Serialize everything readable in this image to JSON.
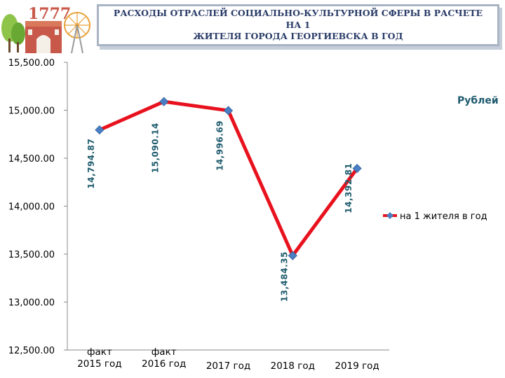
{
  "header": {
    "logo_text": "1777",
    "title_line1": "РАСХОДЫ ОТРАСЛЕЙ СОЦИАЛЬНО-КУЛЬТУРНОЙ СФЕРЫ В РАСЧЕТЕ НА 1",
    "title_line2": "ЖИТЕЛЯ ГОРОДА ГЕОРГИЕВСКА В ГОД"
  },
  "colors": {
    "series_line": "#e8121e",
    "marker": "#4a7ec2",
    "label": "#1f5c6e",
    "title": "#2a3c68"
  },
  "chart_data": {
    "type": "line",
    "title": "РАСХОДЫ ОТРАСЛЕЙ СОЦИАЛЬНО-КУЛЬТУРНОЙ СФЕРЫ В РАСЧЕТЕ НА 1 ЖИТЕЛЯ ГОРОДА ГЕОРГИЕВСКА В ГОД",
    "unit_label": "Рублей",
    "categories": [
      [
        "факт",
        "2015 год"
      ],
      [
        "факт",
        "2016 год"
      ],
      [
        "2017 год"
      ],
      [
        "2018 год"
      ],
      [
        "2019 год"
      ]
    ],
    "series": [
      {
        "name": "на 1 жителя в год",
        "values": [
          14794.87,
          15090.14,
          14996.69,
          13484.35,
          14392.81
        ],
        "labels": [
          "14,794.87",
          "15,090.14",
          "14,996.69",
          "13,484.35",
          "14,392.81"
        ]
      }
    ],
    "ylim": [
      12500,
      15500
    ],
    "yticks": [
      12500,
      13000,
      13500,
      14000,
      14500,
      15000,
      15500
    ],
    "ytick_labels": [
      "12,500.00",
      "13,000.00",
      "13,500.00",
      "14,000.00",
      "14,500.00",
      "15,000.00",
      "15,500.00"
    ],
    "grid": false,
    "legend_position": "right"
  }
}
